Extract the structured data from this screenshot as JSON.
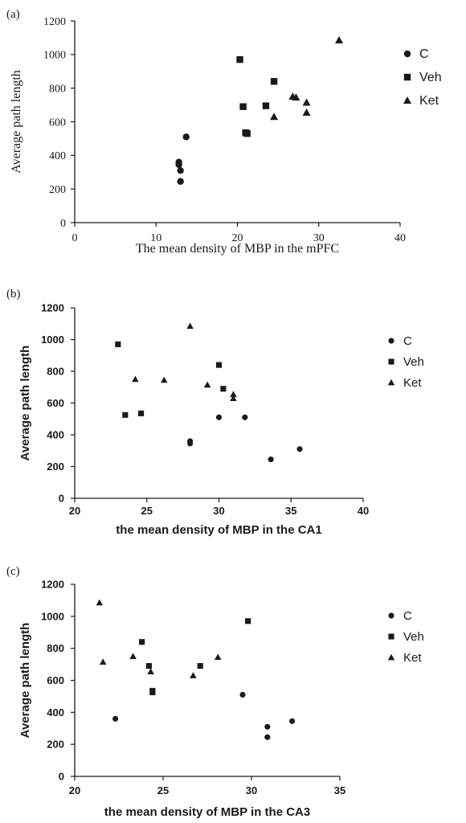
{
  "chart_data": [
    {
      "type": "scatter",
      "panel_label": "(a)",
      "xlabel": "The mean density of MBP in the mPFC",
      "ylabel": "Average path length",
      "xlim": [
        0,
        40
      ],
      "ylim": [
        0,
        1200
      ],
      "x_ticks": [
        "0",
        "10",
        "20",
        "30",
        "40"
      ],
      "y_ticks": [
        "0",
        "200",
        "400",
        "600",
        "800",
        "1000",
        "1200"
      ],
      "legend_position": "right",
      "series": [
        {
          "name": "C",
          "marker": "circle",
          "points": [
            [
              12.8,
              360
            ],
            [
              12.8,
              345
            ],
            [
              13.0,
              310
            ],
            [
              13.0,
              245
            ],
            [
              13.7,
              510
            ]
          ]
        },
        {
          "name": "Veh",
          "marker": "square",
          "points": [
            [
              20.3,
              970
            ],
            [
              20.7,
              690
            ],
            [
              21.0,
              535
            ],
            [
              21.2,
              530
            ],
            [
              23.5,
              695
            ],
            [
              24.5,
              840
            ]
          ]
        },
        {
          "name": "Ket",
          "marker": "triangle",
          "points": [
            [
              24.5,
              630
            ],
            [
              26.8,
              750
            ],
            [
              27.2,
              745
            ],
            [
              28.5,
              715
            ],
            [
              28.5,
              655
            ],
            [
              32.5,
              1085
            ]
          ]
        }
      ]
    },
    {
      "type": "scatter",
      "panel_label": "(b)",
      "xlabel": "the mean density of MBP in the CA1",
      "ylabel": "Average path length",
      "xlim": [
        20,
        40
      ],
      "ylim": [
        0,
        1200
      ],
      "x_ticks": [
        "20",
        "25",
        "30",
        "35",
        "40"
      ],
      "y_ticks": [
        "0",
        "200",
        "400",
        "600",
        "800",
        "1000",
        "1200"
      ],
      "legend_position": "right",
      "series": [
        {
          "name": "C",
          "marker": "circle",
          "points": [
            [
              28.0,
              360
            ],
            [
              28.0,
              345
            ],
            [
              30.0,
              510
            ],
            [
              31.8,
              510
            ],
            [
              33.6,
              245
            ],
            [
              35.6,
              310
            ]
          ]
        },
        {
          "name": "Veh",
          "marker": "square",
          "points": [
            [
              23.0,
              970
            ],
            [
              23.5,
              525
            ],
            [
              24.6,
              535
            ],
            [
              30.0,
              840
            ],
            [
              30.3,
              690
            ]
          ]
        },
        {
          "name": "Ket",
          "marker": "triangle",
          "points": [
            [
              24.2,
              750
            ],
            [
              26.2,
              745
            ],
            [
              28.0,
              1085
            ],
            [
              29.2,
              715
            ],
            [
              31.0,
              655
            ],
            [
              31.0,
              630
            ]
          ]
        }
      ]
    },
    {
      "type": "scatter",
      "panel_label": "(c)",
      "xlabel": "the mean density of MBP in the CA3",
      "ylabel": "Average path length",
      "xlim": [
        20,
        35
      ],
      "ylim": [
        0,
        1200
      ],
      "x_ticks": [
        "20",
        "25",
        "30",
        "35"
      ],
      "y_ticks": [
        "0",
        "200",
        "400",
        "600",
        "800",
        "1000",
        "1200"
      ],
      "legend_position": "right",
      "series": [
        {
          "name": "C",
          "marker": "circle",
          "points": [
            [
              22.3,
              360
            ],
            [
              29.5,
              510
            ],
            [
              30.9,
              310
            ],
            [
              30.9,
              245
            ],
            [
              32.3,
              345
            ]
          ]
        },
        {
          "name": "Veh",
          "marker": "square",
          "points": [
            [
              23.8,
              840
            ],
            [
              24.2,
              690
            ],
            [
              24.4,
              535
            ],
            [
              24.4,
              525
            ],
            [
              27.1,
              690
            ],
            [
              29.8,
              970
            ]
          ]
        },
        {
          "name": "Ket",
          "marker": "triangle",
          "points": [
            [
              21.4,
              1085
            ],
            [
              21.6,
              715
            ],
            [
              23.3,
              750
            ],
            [
              24.3,
              655
            ],
            [
              26.7,
              630
            ],
            [
              28.1,
              745
            ]
          ]
        }
      ]
    }
  ]
}
